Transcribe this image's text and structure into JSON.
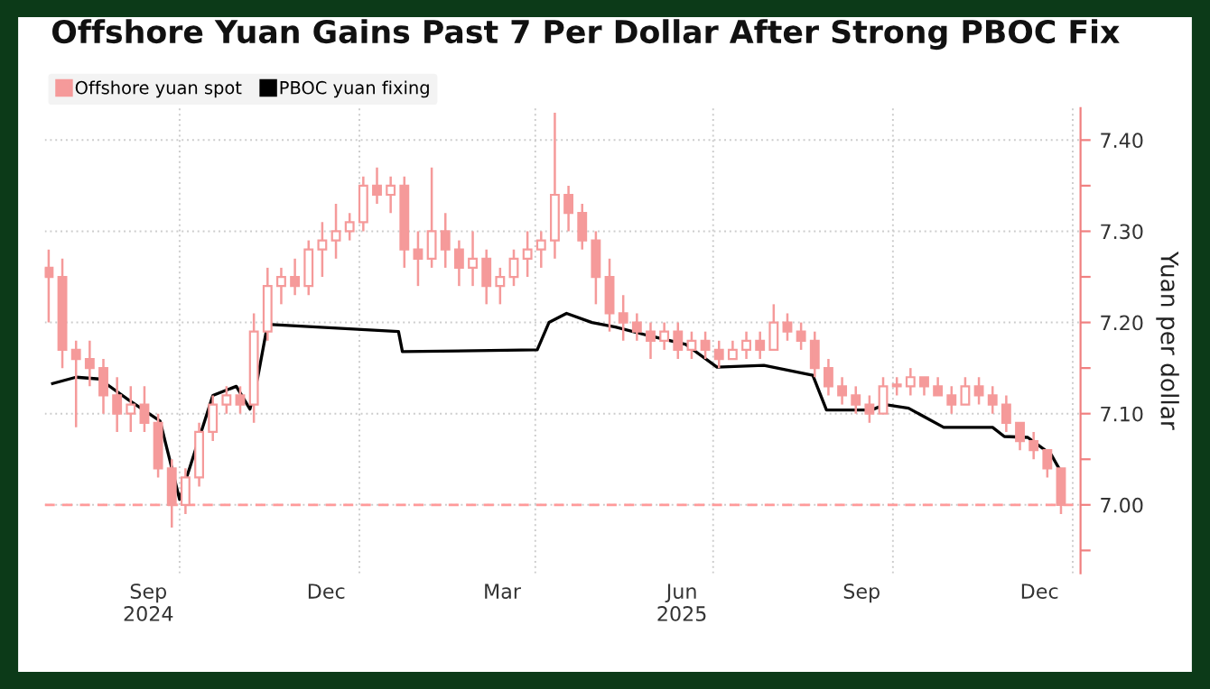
{
  "chart_data": {
    "type": "candlestick",
    "title": "Offshore Yuan Gains Past 7 Per Dollar After Strong PBOC Fix",
    "ylabel": "Yuan per dollar",
    "series": [
      {
        "name": "Offshore yuan spot",
        "type": "candlestick",
        "color": "#f59a9a",
        "x": [
          "2024-07-26",
          "2024-08-02",
          "2024-08-09",
          "2024-08-16",
          "2024-08-23",
          "2024-08-30",
          "2024-09-06",
          "2024-09-13",
          "2024-09-20",
          "2024-09-27",
          "2024-10-04",
          "2024-10-11",
          "2024-10-18",
          "2024-10-25",
          "2024-11-01",
          "2024-11-08",
          "2024-11-15",
          "2024-11-22",
          "2024-11-29",
          "2024-12-06",
          "2024-12-13",
          "2024-12-20",
          "2024-12-27",
          "2025-01-03",
          "2025-01-10",
          "2025-01-17",
          "2025-01-24",
          "2025-01-31",
          "2025-02-07",
          "2025-02-14",
          "2025-02-21",
          "2025-02-28",
          "2025-03-07",
          "2025-03-14",
          "2025-03-21",
          "2025-03-28",
          "2025-04-04",
          "2025-04-11",
          "2025-04-18",
          "2025-04-25",
          "2025-05-02",
          "2025-05-09",
          "2025-05-16",
          "2025-05-23",
          "2025-05-30",
          "2025-06-06",
          "2025-06-13",
          "2025-06-20",
          "2025-06-27",
          "2025-07-04",
          "2025-07-11",
          "2025-07-18",
          "2025-07-25",
          "2025-08-01",
          "2025-08-08",
          "2025-08-15",
          "2025-08-22",
          "2025-08-29",
          "2025-09-05",
          "2025-09-12",
          "2025-09-19",
          "2025-09-26",
          "2025-10-03",
          "2025-10-10",
          "2025-10-17",
          "2025-10-24",
          "2025-10-31",
          "2025-11-07",
          "2025-11-14",
          "2025-11-21",
          "2025-11-28",
          "2025-12-05",
          "2025-12-12",
          "2025-12-19",
          "2025-12-26"
        ],
        "ohlc": [
          [
            7.26,
            7.28,
            7.2,
            7.25
          ],
          [
            7.25,
            7.27,
            7.15,
            7.17
          ],
          [
            7.17,
            7.18,
            7.085,
            7.16
          ],
          [
            7.16,
            7.18,
            7.13,
            7.15
          ],
          [
            7.15,
            7.16,
            7.1,
            7.12
          ],
          [
            7.12,
            7.14,
            7.08,
            7.1
          ],
          [
            7.1,
            7.13,
            7.08,
            7.11
          ],
          [
            7.11,
            7.13,
            7.08,
            7.09
          ],
          [
            7.09,
            7.1,
            7.03,
            7.04
          ],
          [
            7.04,
            7.05,
            6.975,
            7.0
          ],
          [
            7.0,
            7.04,
            6.99,
            7.03
          ],
          [
            7.03,
            7.09,
            7.02,
            7.08
          ],
          [
            7.08,
            7.12,
            7.07,
            7.11
          ],
          [
            7.11,
            7.13,
            7.1,
            7.12
          ],
          [
            7.12,
            7.13,
            7.1,
            7.11
          ],
          [
            7.11,
            7.21,
            7.09,
            7.19
          ],
          [
            7.19,
            7.26,
            7.18,
            7.24
          ],
          [
            7.24,
            7.26,
            7.22,
            7.25
          ],
          [
            7.25,
            7.27,
            7.23,
            7.24
          ],
          [
            7.24,
            7.29,
            7.23,
            7.28
          ],
          [
            7.28,
            7.31,
            7.25,
            7.29
          ],
          [
            7.29,
            7.33,
            7.27,
            7.3
          ],
          [
            7.3,
            7.32,
            7.29,
            7.31
          ],
          [
            7.31,
            7.36,
            7.3,
            7.35
          ],
          [
            7.35,
            7.37,
            7.33,
            7.34
          ],
          [
            7.34,
            7.36,
            7.32,
            7.35
          ],
          [
            7.35,
            7.36,
            7.26,
            7.28
          ],
          [
            7.28,
            7.3,
            7.24,
            7.27
          ],
          [
            7.27,
            7.37,
            7.26,
            7.3
          ],
          [
            7.3,
            7.32,
            7.26,
            7.28
          ],
          [
            7.28,
            7.29,
            7.24,
            7.26
          ],
          [
            7.26,
            7.3,
            7.24,
            7.27
          ],
          [
            7.27,
            7.28,
            7.22,
            7.24
          ],
          [
            7.24,
            7.26,
            7.22,
            7.25
          ],
          [
            7.25,
            7.28,
            7.24,
            7.27
          ],
          [
            7.27,
            7.3,
            7.25,
            7.28
          ],
          [
            7.28,
            7.3,
            7.26,
            7.29
          ],
          [
            7.29,
            7.43,
            7.27,
            7.34
          ],
          [
            7.34,
            7.35,
            7.3,
            7.32
          ],
          [
            7.32,
            7.33,
            7.28,
            7.29
          ],
          [
            7.29,
            7.3,
            7.22,
            7.25
          ],
          [
            7.25,
            7.27,
            7.19,
            7.21
          ],
          [
            7.21,
            7.23,
            7.18,
            7.2
          ],
          [
            7.2,
            7.21,
            7.18,
            7.19
          ],
          [
            7.19,
            7.2,
            7.16,
            7.18
          ],
          [
            7.18,
            7.2,
            7.17,
            7.19
          ],
          [
            7.19,
            7.2,
            7.16,
            7.17
          ],
          [
            7.17,
            7.19,
            7.16,
            7.18
          ],
          [
            7.18,
            7.19,
            7.16,
            7.17
          ],
          [
            7.17,
            7.18,
            7.15,
            7.16
          ],
          [
            7.16,
            7.18,
            7.16,
            7.17
          ],
          [
            7.17,
            7.19,
            7.16,
            7.18
          ],
          [
            7.18,
            7.19,
            7.16,
            7.17
          ],
          [
            7.17,
            7.22,
            7.17,
            7.2
          ],
          [
            7.2,
            7.21,
            7.18,
            7.19
          ],
          [
            7.19,
            7.2,
            7.17,
            7.18
          ],
          [
            7.18,
            7.19,
            7.14,
            7.15
          ],
          [
            7.15,
            7.16,
            7.12,
            7.13
          ],
          [
            7.13,
            7.14,
            7.11,
            7.12
          ],
          [
            7.12,
            7.13,
            7.1,
            7.11
          ],
          [
            7.11,
            7.12,
            7.09,
            7.1
          ],
          [
            7.1,
            7.14,
            7.1,
            7.13
          ],
          [
            7.13,
            7.14,
            7.12,
            7.13
          ],
          [
            7.13,
            7.15,
            7.12,
            7.14
          ],
          [
            7.14,
            7.14,
            7.12,
            7.13
          ],
          [
            7.13,
            7.14,
            7.12,
            7.12
          ],
          [
            7.12,
            7.13,
            7.1,
            7.11
          ],
          [
            7.11,
            7.14,
            7.11,
            7.13
          ],
          [
            7.13,
            7.14,
            7.11,
            7.12
          ],
          [
            7.12,
            7.13,
            7.1,
            7.11
          ],
          [
            7.11,
            7.12,
            7.08,
            7.09
          ],
          [
            7.09,
            7.09,
            7.06,
            7.07
          ],
          [
            7.07,
            7.08,
            7.05,
            7.06
          ],
          [
            7.06,
            7.06,
            7.03,
            7.04
          ],
          [
            7.04,
            7.04,
            6.99,
            7.0
          ]
        ]
      },
      {
        "name": "PBOC yuan fixing",
        "type": "line",
        "color": "#000000",
        "x": [
          "2024-07-28",
          "2024-08-09",
          "2024-08-21",
          "2024-09-05",
          "2024-09-21",
          "2024-10-01",
          "2024-10-18",
          "2024-10-30",
          "2024-11-06",
          "2024-11-10",
          "2024-11-15",
          "2025-01-21",
          "2025-01-23",
          "2025-04-02",
          "2025-04-08",
          "2025-04-17",
          "2025-04-30",
          "2025-05-12",
          "2025-05-30",
          "2025-06-17",
          "2025-07-03",
          "2025-07-27",
          "2025-08-21",
          "2025-08-28",
          "2025-09-20",
          "2025-09-27",
          "2025-10-09",
          "2025-10-27",
          "2025-11-21",
          "2025-11-27",
          "2025-12-09",
          "2025-12-21",
          "2025-12-25"
        ],
        "values": [
          7.133,
          7.14,
          7.138,
          7.115,
          7.092,
          7.006,
          7.12,
          7.13,
          7.105,
          7.14,
          7.198,
          7.19,
          7.168,
          7.17,
          7.2,
          7.21,
          7.2,
          7.195,
          7.185,
          7.176,
          7.151,
          7.153,
          7.142,
          7.104,
          7.104,
          7.11,
          7.106,
          7.085,
          7.085,
          7.075,
          7.074,
          7.055,
          7.04
        ]
      }
    ],
    "xlim": [
      "2024-07-24",
      "2026-01-05"
    ],
    "xticks": [
      {
        "value": "2024-09-15",
        "label": "Sep\n2024"
      },
      {
        "value": "2024-10-01",
        "label": null
      },
      {
        "value": "2024-12-15",
        "label": "Dec"
      },
      {
        "value": "2025-01-01",
        "label": null
      },
      {
        "value": "2025-03-15",
        "label": "Mar"
      },
      {
        "value": "2025-04-01",
        "label": null
      },
      {
        "value": "2025-06-15",
        "label": "Jun\n2025"
      },
      {
        "value": "2025-07-01",
        "label": null
      },
      {
        "value": "2025-09-15",
        "label": "Sep"
      },
      {
        "value": "2025-10-01",
        "label": null
      },
      {
        "value": "2025-12-15",
        "label": "Dec"
      },
      {
        "value": "2026-01-01",
        "label": null
      }
    ],
    "ylim": [
      6.925,
      7.435
    ],
    "yticks": [
      {
        "value": 6.95,
        "label": null
      },
      {
        "value": 7.0,
        "label": "7.00"
      },
      {
        "value": 7.05,
        "label": null
      },
      {
        "value": 7.1,
        "label": "7.10"
      },
      {
        "value": 7.15,
        "label": null
      },
      {
        "value": 7.2,
        "label": "7.20"
      },
      {
        "value": 7.25,
        "label": null
      },
      {
        "value": 7.3,
        "label": "7.30"
      },
      {
        "value": 7.35,
        "label": null
      },
      {
        "value": 7.4,
        "label": "7.40"
      }
    ],
    "ref_lines": [
      {
        "axis": "y",
        "value": 7.0,
        "color": "#ff9a9a",
        "line_style": "dashed"
      }
    ],
    "grid": true,
    "legend": "top left"
  }
}
